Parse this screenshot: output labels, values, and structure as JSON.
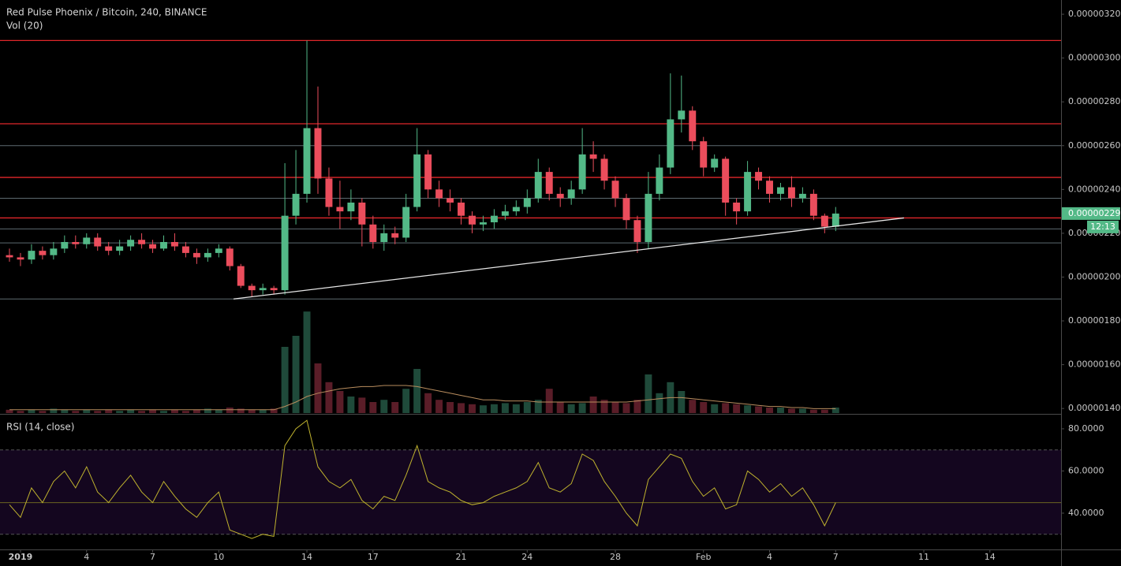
{
  "chart_data": {
    "type": "candlestick",
    "title": "Red Pulse Phoenix / Bitcoin, 240, BINANCE",
    "volume_title": "Vol (20)",
    "rsi_title": "RSI (14, close)",
    "last_price_label": "0.00000229",
    "countdown": "12:13",
    "up_color": "#53b987",
    "down_color": "#eb4d5c",
    "volume_up_color": "#1f4a3a",
    "volume_down_color": "#5a1d28",
    "volume_ma_color": "#b98d5e",
    "rsi_color": "#bfb22e",
    "rsi_band_color": "#14061f",
    "x": [
      -0.5,
      0,
      0.5,
      1,
      1.5,
      2,
      2.5,
      3,
      3.5,
      4,
      4.5,
      5,
      5.5,
      6,
      6.5,
      7,
      7.5,
      8,
      8.5,
      9,
      9.5,
      10,
      10.5,
      11,
      11.5,
      12,
      12.5,
      13,
      13.5,
      14,
      14.5,
      15,
      15.5,
      16,
      16.5,
      17,
      17.5,
      18,
      18.5,
      19,
      19.5,
      20,
      20.5,
      21,
      21.5,
      22,
      22.5,
      23,
      23.5,
      24,
      24.5,
      25,
      25.5,
      26,
      26.5,
      27,
      27.5,
      28,
      28.5,
      29,
      29.5,
      30,
      30.5,
      31,
      31.5,
      32,
      32.5,
      33,
      33.5,
      34,
      34.5,
      35,
      35.5,
      36,
      36.5,
      37
    ],
    "open": [
      2.1e-06,
      2.09e-06,
      2.08e-06,
      2.12e-06,
      2.1e-06,
      2.13e-06,
      2.16e-06,
      2.15e-06,
      2.18e-06,
      2.14e-06,
      2.12e-06,
      2.14e-06,
      2.17e-06,
      2.15e-06,
      2.13e-06,
      2.16e-06,
      2.14e-06,
      2.11e-06,
      2.09e-06,
      2.11e-06,
      2.13e-06,
      2.05e-06,
      1.96e-06,
      1.94e-06,
      1.95e-06,
      1.94e-06,
      2.28e-06,
      2.38e-06,
      2.68e-06,
      2.45e-06,
      2.32e-06,
      2.3e-06,
      2.34e-06,
      2.24e-06,
      2.16e-06,
      2.2e-06,
      2.18e-06,
      2.32e-06,
      2.56e-06,
      2.4e-06,
      2.36e-06,
      2.34e-06,
      2.28e-06,
      2.24e-06,
      2.25e-06,
      2.28e-06,
      2.3e-06,
      2.32e-06,
      2.36e-06,
      2.48e-06,
      2.38e-06,
      2.36e-06,
      2.4e-06,
      2.56e-06,
      2.54e-06,
      2.44e-06,
      2.36e-06,
      2.26e-06,
      2.16e-06,
      2.38e-06,
      2.5e-06,
      2.72e-06,
      2.76e-06,
      2.62e-06,
      2.5e-06,
      2.54e-06,
      2.34e-06,
      2.3e-06,
      2.48e-06,
      2.44e-06,
      2.38e-06,
      2.41e-06,
      2.36e-06,
      2.38e-06,
      2.28e-06,
      2.23e-06
    ],
    "high": [
      2.13e-06,
      2.11e-06,
      2.15e-06,
      2.14e-06,
      2.16e-06,
      2.19e-06,
      2.19e-06,
      2.2e-06,
      2.2e-06,
      2.16e-06,
      2.17e-06,
      2.19e-06,
      2.2e-06,
      2.17e-06,
      2.19e-06,
      2.2e-06,
      2.16e-06,
      2.13e-06,
      2.13e-06,
      2.15e-06,
      2.14e-06,
      2.06e-06,
      1.97e-06,
      1.97e-06,
      1.96e-06,
      2.52e-06,
      2.58e-06,
      3.08e-06,
      2.87e-06,
      2.5e-06,
      2.44e-06,
      2.4e-06,
      2.36e-06,
      2.28e-06,
      2.24e-06,
      2.23e-06,
      2.38e-06,
      2.68e-06,
      2.58e-06,
      2.44e-06,
      2.4e-06,
      2.36e-06,
      2.3e-06,
      2.28e-06,
      2.31e-06,
      2.33e-06,
      2.35e-06,
      2.4e-06,
      2.54e-06,
      2.5e-06,
      2.41e-06,
      2.44e-06,
      2.68e-06,
      2.62e-06,
      2.56e-06,
      2.46e-06,
      2.38e-06,
      2.28e-06,
      2.48e-06,
      2.56e-06,
      2.93e-06,
      2.92e-06,
      2.78e-06,
      2.64e-06,
      2.56e-06,
      2.55e-06,
      2.36e-06,
      2.53e-06,
      2.5e-06,
      2.46e-06,
      2.43e-06,
      2.46e-06,
      2.41e-06,
      2.4e-06,
      2.29e-06,
      2.32e-06
    ],
    "low": [
      2.07e-06,
      2.05e-06,
      2.06e-06,
      2.08e-06,
      2.08e-06,
      2.11e-06,
      2.13e-06,
      2.13e-06,
      2.12e-06,
      2.1e-06,
      2.1e-06,
      2.12e-06,
      2.13e-06,
      2.11e-06,
      2.12e-06,
      2.12e-06,
      2.09e-06,
      2.06e-06,
      2.07e-06,
      2.09e-06,
      2.03e-06,
      1.95e-06,
      1.91e-06,
      1.92e-06,
      1.92e-06,
      1.92e-06,
      2.24e-06,
      2.34e-06,
      2.38e-06,
      2.28e-06,
      2.22e-06,
      2.26e-06,
      2.14e-06,
      2.13e-06,
      2.12e-06,
      2.15e-06,
      2.16e-06,
      2.3e-06,
      2.36e-06,
      2.32e-06,
      2.3e-06,
      2.24e-06,
      2.2e-06,
      2.21e-06,
      2.22e-06,
      2.26e-06,
      2.28e-06,
      2.29e-06,
      2.34e-06,
      2.35e-06,
      2.32e-06,
      2.33e-06,
      2.38e-06,
      2.48e-06,
      2.4e-06,
      2.32e-06,
      2.22e-06,
      2.11e-06,
      2.13e-06,
      2.35e-06,
      2.47e-06,
      2.66e-06,
      2.58e-06,
      2.46e-06,
      2.48e-06,
      2.28e-06,
      2.24e-06,
      2.28e-06,
      2.4e-06,
      2.34e-06,
      2.35e-06,
      2.32e-06,
      2.34e-06,
      2.26e-06,
      2.2e-06,
      2.21e-06
    ],
    "close": [
      2.09e-06,
      2.08e-06,
      2.12e-06,
      2.1e-06,
      2.13e-06,
      2.16e-06,
      2.15e-06,
      2.18e-06,
      2.14e-06,
      2.12e-06,
      2.14e-06,
      2.17e-06,
      2.15e-06,
      2.13e-06,
      2.16e-06,
      2.14e-06,
      2.11e-06,
      2.09e-06,
      2.11e-06,
      2.13e-06,
      2.05e-06,
      1.96e-06,
      1.94e-06,
      1.95e-06,
      1.94e-06,
      2.28e-06,
      2.38e-06,
      2.68e-06,
      2.45e-06,
      2.32e-06,
      2.3e-06,
      2.34e-06,
      2.24e-06,
      2.16e-06,
      2.2e-06,
      2.18e-06,
      2.32e-06,
      2.56e-06,
      2.4e-06,
      2.36e-06,
      2.34e-06,
      2.28e-06,
      2.24e-06,
      2.25e-06,
      2.28e-06,
      2.3e-06,
      2.32e-06,
      2.36e-06,
      2.48e-06,
      2.38e-06,
      2.36e-06,
      2.4e-06,
      2.56e-06,
      2.54e-06,
      2.44e-06,
      2.36e-06,
      2.26e-06,
      2.16e-06,
      2.38e-06,
      2.5e-06,
      2.72e-06,
      2.76e-06,
      2.62e-06,
      2.5e-06,
      2.54e-06,
      2.34e-06,
      2.3e-06,
      2.48e-06,
      2.44e-06,
      2.38e-06,
      2.41e-06,
      2.36e-06,
      2.38e-06,
      2.28e-06,
      2.23e-06,
      2.29e-06
    ],
    "volume": [
      3,
      2,
      3,
      2,
      4,
      3,
      2,
      3,
      2,
      3,
      2,
      3,
      2,
      3,
      2,
      3,
      2,
      3,
      4,
      3,
      5,
      4,
      3,
      3,
      4,
      60,
      70,
      92,
      45,
      28,
      20,
      15,
      14,
      10,
      12,
      10,
      22,
      40,
      18,
      12,
      10,
      9,
      8,
      7,
      8,
      9,
      8,
      10,
      12,
      22,
      10,
      8,
      9,
      15,
      12,
      10,
      9,
      12,
      35,
      18,
      28,
      20,
      12,
      10,
      8,
      9,
      8,
      7,
      6,
      5,
      5,
      4,
      4,
      3,
      3,
      5
    ],
    "volume_ma": [
      3,
      3,
      3,
      3,
      3,
      3,
      3,
      3,
      3,
      3,
      3,
      3,
      3,
      3,
      3,
      3,
      3,
      3,
      3,
      3,
      3,
      3,
      3,
      3,
      3,
      6,
      10,
      15,
      18,
      20,
      22,
      23,
      24,
      24,
      25,
      25,
      25,
      24,
      22,
      20,
      18,
      16,
      14,
      12,
      12,
      11,
      11,
      11,
      10,
      10,
      10,
      10,
      10,
      10,
      10,
      10,
      10,
      11,
      12,
      13,
      14,
      14,
      13,
      12,
      11,
      10,
      9,
      8,
      7,
      6,
      6,
      5,
      5,
      4,
      4,
      4
    ],
    "vlim": [
      0,
      100
    ],
    "rsi": [
      44,
      38,
      52,
      45,
      55,
      60,
      52,
      62,
      50,
      45,
      52,
      58,
      50,
      45,
      55,
      48,
      42,
      38,
      45,
      50,
      32,
      30,
      28,
      30,
      29,
      72,
      80,
      84,
      62,
      55,
      52,
      56,
      46,
      42,
      48,
      46,
      58,
      72,
      55,
      52,
      50,
      46,
      44,
      45,
      48,
      50,
      52,
      55,
      64,
      52,
      50,
      54,
      68,
      65,
      55,
      48,
      40,
      34,
      56,
      62,
      68,
      66,
      55,
      48,
      52,
      42,
      44,
      60,
      56,
      50,
      54,
      48,
      52,
      44,
      34,
      45
    ],
    "rsi_band": [
      30,
      70
    ],
    "xlim": [
      -0.93,
      47.23
    ],
    "xticks": [
      {
        "value": 0,
        "label": "2019"
      },
      {
        "value": 3,
        "label": "4"
      },
      {
        "value": 6,
        "label": "7"
      },
      {
        "value": 9,
        "label": "10"
      },
      {
        "value": 13,
        "label": "14"
      },
      {
        "value": 16,
        "label": "17"
      },
      {
        "value": 20,
        "label": "21"
      },
      {
        "value": 23,
        "label": "24"
      },
      {
        "value": 27,
        "label": "28"
      },
      {
        "value": 31,
        "label": "Feb"
      },
      {
        "value": 34,
        "label": "4"
      },
      {
        "value": 37,
        "label": "7"
      },
      {
        "value": 41,
        "label": "11"
      },
      {
        "value": 44,
        "label": "14"
      }
    ],
    "ylim": [
      1.379e-06,
      3.265e-06
    ],
    "yticks": [
      {
        "value": 1.4e-06,
        "label": "0.00000140"
      },
      {
        "value": 1.6e-06,
        "label": "0.00000160"
      },
      {
        "value": 1.8e-06,
        "label": "0.00000180"
      },
      {
        "value": 2e-06,
        "label": "0.00000200"
      },
      {
        "value": 2.2e-06,
        "label": "0.00000220"
      },
      {
        "value": 2.4e-06,
        "label": "0.00000240"
      },
      {
        "value": 2.6e-06,
        "label": "0.00000260"
      },
      {
        "value": 2.8e-06,
        "label": "0.00000280"
      },
      {
        "value": 3e-06,
        "label": "0.00000300"
      },
      {
        "value": 3.2e-06,
        "label": "0.00000320"
      }
    ],
    "rsi_ylim": [
      22.8,
      86.7
    ],
    "rsi_yticks": [
      {
        "value": 40,
        "label": "40.0000"
      },
      {
        "value": 60,
        "label": "60.0000"
      },
      {
        "value": 80,
        "label": "80.0000"
      }
    ],
    "hlines": [
      {
        "price": 3.08e-06,
        "color": "#e0262a"
      },
      {
        "price": 2.7e-06,
        "color": "#e0262a"
      },
      {
        "price": 2.455e-06,
        "color": "#e0262a"
      },
      {
        "price": 2.27e-06,
        "color": "#e0262a"
      },
      {
        "price": 2.6e-06,
        "color": "#5d6a70"
      },
      {
        "price": 2.36e-06,
        "color": "#5d6a70"
      },
      {
        "price": 2.22e-06,
        "color": "#5d6a70"
      },
      {
        "price": 2.156e-06,
        "color": "#5d6a70"
      },
      {
        "price": 1.9e-06,
        "color": "#5d6a70"
      }
    ],
    "trendline": {
      "x": [
        9.67,
        40.1
      ],
      "y": [
        1.9e-06,
        2.27e-06
      ],
      "color": "#e6e6e6"
    }
  }
}
